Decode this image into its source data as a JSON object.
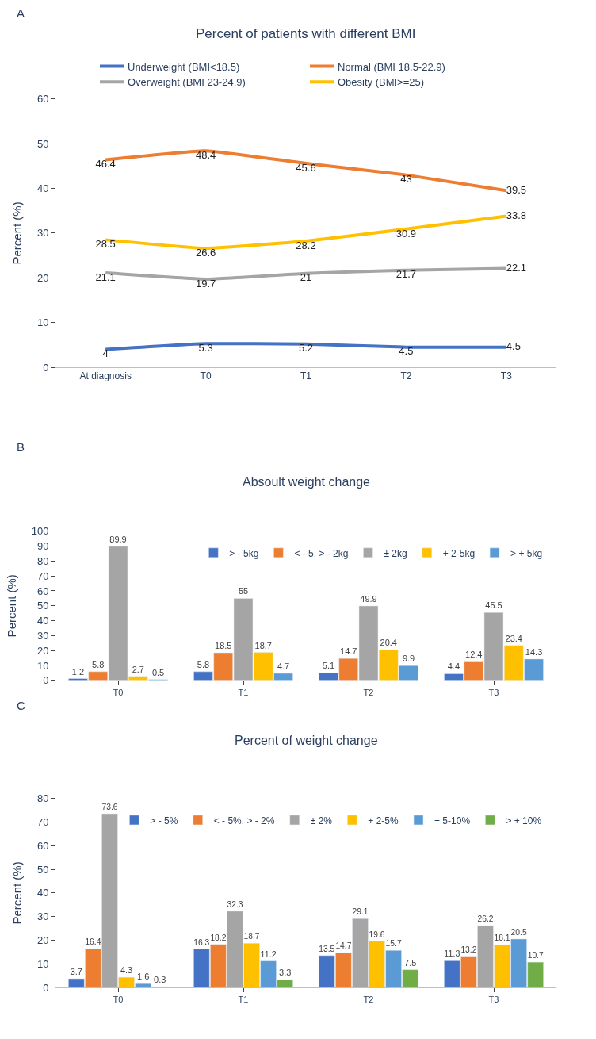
{
  "chart_data": [
    {
      "type": "line",
      "title": "Percent of patients with different BMI",
      "ylabel": "Percent (%)",
      "annotations": [
        "A"
      ],
      "categories": [
        "At diagnosis",
        "T0",
        "T1",
        "T2",
        "T3"
      ],
      "ylim": [
        0,
        60
      ],
      "yticks": [
        0,
        10,
        20,
        30,
        40,
        50,
        60
      ],
      "legend": "top",
      "marker": "none",
      "line_style": "solid",
      "data_labels": true,
      "series": [
        {
          "name": "Underweight (BMI<18.5)",
          "color": "#4472c4",
          "values": [
            4,
            5.3,
            5.2,
            4.5,
            4.5
          ]
        },
        {
          "name": "Normal (BMI 18.5-22.9)",
          "color": "#ed7d31",
          "values": [
            46.4,
            48.4,
            45.6,
            43,
            39.5
          ]
        },
        {
          "name": "Overweight (BMI 23-24.9)",
          "color": "#a5a5a5",
          "values": [
            21.1,
            19.7,
            21,
            21.7,
            22.1
          ]
        },
        {
          "name": "Obesity (BMI>=25)",
          "color": "#ffc000",
          "values": [
            28.5,
            26.6,
            28.2,
            30.9,
            33.8
          ]
        }
      ]
    },
    {
      "type": "bar",
      "title": "Absoult weight change",
      "ylabel": "Percent (%)",
      "annotations": [
        "B"
      ],
      "categories": [
        "T0",
        "T1",
        "T2",
        "T3"
      ],
      "ylim": [
        0,
        100
      ],
      "yticks": [
        0,
        10,
        20,
        30,
        40,
        50,
        60,
        70,
        80,
        90,
        100
      ],
      "legend": "top right",
      "data_labels": true,
      "series": [
        {
          "name": "> - 5kg",
          "color": "#4472c4",
          "values": [
            1.2,
            5.8,
            5.1,
            4.4
          ]
        },
        {
          "name": "< - 5, > - 2kg",
          "color": "#ed7d31",
          "values": [
            5.8,
            18.5,
            14.7,
            12.4
          ]
        },
        {
          "name": "± 2kg",
          "color": "#a5a5a5",
          "values": [
            89.9,
            55,
            49.9,
            45.5
          ]
        },
        {
          "name": "+ 2-5kg",
          "color": "#ffc000",
          "values": [
            2.7,
            18.7,
            20.4,
            23.4
          ]
        },
        {
          "name": "> + 5kg",
          "color": "#5b9bd5",
          "values": [
            0.5,
            4.7,
            9.9,
            14.3
          ]
        }
      ]
    },
    {
      "type": "bar",
      "title": "Percent of weight change",
      "ylabel": "Percent (%)",
      "annotations": [
        "C"
      ],
      "categories": [
        "T0",
        "T1",
        "T2",
        "T3"
      ],
      "ylim": [
        0,
        80
      ],
      "yticks": [
        0,
        10,
        20,
        30,
        40,
        50,
        60,
        70,
        80
      ],
      "legend": "top right",
      "data_labels": true,
      "series": [
        {
          "name": "> - 5%",
          "color": "#4472c4",
          "values": [
            3.7,
            16.3,
            13.5,
            11.3
          ]
        },
        {
          "name": "< - 5%, > - 2%",
          "color": "#ed7d31",
          "values": [
            16.4,
            18.2,
            14.7,
            13.2
          ]
        },
        {
          "name": "± 2%",
          "color": "#a5a5a5",
          "values": [
            73.6,
            32.3,
            29.1,
            26.2
          ]
        },
        {
          "name": "+ 2-5%",
          "color": "#ffc000",
          "values": [
            4.3,
            18.7,
            19.6,
            18.1
          ]
        },
        {
          "name": "+ 5-10%",
          "color": "#5b9bd5",
          "values": [
            1.6,
            11.2,
            15.7,
            20.5
          ]
        },
        {
          "name": "> + 10%",
          "color": "#70ad47",
          "values": [
            0.3,
            3.3,
            7.5,
            10.7
          ]
        }
      ]
    }
  ]
}
